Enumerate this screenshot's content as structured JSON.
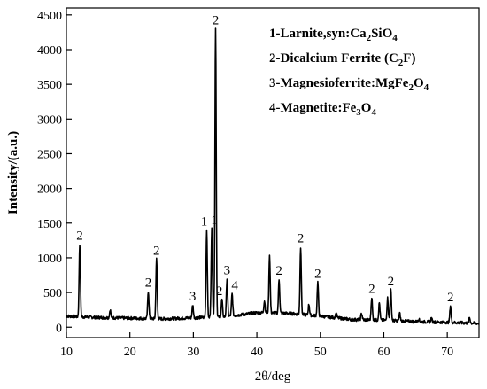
{
  "chart_data": {
    "type": "line",
    "xlabel": "2θ/deg",
    "ylabel": "Intensity/(a.u.)",
    "xlim": [
      10,
      75
    ],
    "ylim": [
      -150,
      4600
    ],
    "xticks": [
      10,
      20,
      30,
      40,
      50,
      60,
      70
    ],
    "yticks": [
      0,
      500,
      1000,
      1500,
      2000,
      2500,
      3000,
      3500,
      4000,
      4500
    ],
    "grid": false,
    "legend_position": "top-right",
    "legend": [
      {
        "id": "1",
        "prefix": "1-Larnite,syn:",
        "formula": [
          [
            "Ca",
            ""
          ],
          [
            "2",
            "sub"
          ],
          [
            "SiO",
            ""
          ],
          [
            "4",
            "sub"
          ]
        ]
      },
      {
        "id": "2",
        "prefix": "2-Dicalcium Ferrite (",
        "formula": [
          [
            "C",
            ""
          ],
          [
            "2",
            "sub"
          ],
          [
            "F)",
            ""
          ]
        ]
      },
      {
        "id": "3",
        "prefix": "3-Magnesioferrite:",
        "formula": [
          [
            "MgFe",
            ""
          ],
          [
            "2",
            "sub"
          ],
          [
            "O",
            ""
          ],
          [
            "4",
            "sub"
          ]
        ]
      },
      {
        "id": "4",
        "prefix": "4-Magnetite:",
        "formula": [
          [
            "Fe",
            ""
          ],
          [
            "3",
            "sub"
          ],
          [
            "O",
            ""
          ],
          [
            "4",
            "sub"
          ]
        ]
      }
    ],
    "baseline": [
      [
        10,
        160
      ],
      [
        12,
        150
      ],
      [
        15,
        140
      ],
      [
        20,
        130
      ],
      [
        25,
        120
      ],
      [
        30,
        135
      ],
      [
        35,
        150
      ],
      [
        40,
        210
      ],
      [
        45,
        200
      ],
      [
        50,
        160
      ],
      [
        55,
        110
      ],
      [
        60,
        100
      ],
      [
        65,
        80
      ],
      [
        70,
        70
      ],
      [
        75,
        55
      ]
    ],
    "peaks": [
      {
        "x": 12.1,
        "y": 1200,
        "label": "2"
      },
      {
        "x": 16.9,
        "y": 250
      },
      {
        "x": 22.9,
        "y": 520,
        "label": "2"
      },
      {
        "x": 24.2,
        "y": 980,
        "label": "2"
      },
      {
        "x": 29.9,
        "y": 320,
        "label": "3"
      },
      {
        "x": 32.1,
        "y": 1400,
        "label": "1"
      },
      {
        "x": 32.9,
        "y": 1420,
        "label": "1"
      },
      {
        "x": 33.5,
        "y": 4300,
        "label": "2"
      },
      {
        "x": 34.5,
        "y": 400,
        "label": "2"
      },
      {
        "x": 35.3,
        "y": 700,
        "label": "3"
      },
      {
        "x": 36.1,
        "y": 480,
        "label": "4"
      },
      {
        "x": 41.2,
        "y": 380
      },
      {
        "x": 42.0,
        "y": 1040
      },
      {
        "x": 43.5,
        "y": 690,
        "label": "2"
      },
      {
        "x": 46.9,
        "y": 1160,
        "label": "2"
      },
      {
        "x": 48.2,
        "y": 330
      },
      {
        "x": 49.6,
        "y": 650,
        "label": "2"
      },
      {
        "x": 52.5,
        "y": 200
      },
      {
        "x": 56.5,
        "y": 200
      },
      {
        "x": 58.1,
        "y": 430,
        "label": "2"
      },
      {
        "x": 59.3,
        "y": 350
      },
      {
        "x": 60.6,
        "y": 420
      },
      {
        "x": 61.1,
        "y": 540,
        "label": "2"
      },
      {
        "x": 62.5,
        "y": 200
      },
      {
        "x": 65.5,
        "y": 120
      },
      {
        "x": 67.5,
        "y": 130
      },
      {
        "x": 70.5,
        "y": 310,
        "label": "2"
      },
      {
        "x": 73.5,
        "y": 140
      }
    ]
  }
}
